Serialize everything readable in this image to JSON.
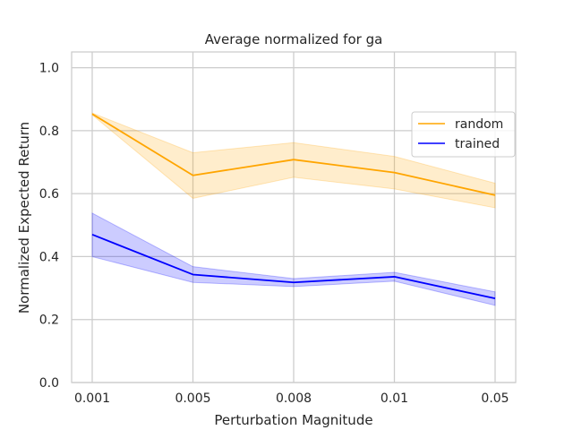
{
  "chart_data": {
    "type": "line",
    "title": "Average normalized for ga",
    "xlabel": "Perturbation Magnitude",
    "ylabel": "Normalized Expected Return",
    "categories": [
      "0.001",
      "0.005",
      "0.008",
      "0.01",
      "0.05"
    ],
    "ylim": [
      0.0,
      1.05
    ],
    "yticks": [
      "0.0",
      "0.2",
      "0.4",
      "0.6",
      "0.8",
      "1.0"
    ],
    "grid": true,
    "legend_position": "upper right",
    "series": [
      {
        "name": "random",
        "color": "#FFA500",
        "values": [
          0.853,
          0.658,
          0.708,
          0.667,
          0.595
        ],
        "lower": [
          0.85,
          0.585,
          0.652,
          0.615,
          0.555
        ],
        "upper": [
          0.856,
          0.73,
          0.762,
          0.718,
          0.633
        ]
      },
      {
        "name": "trained",
        "color": "#0000FF",
        "values": [
          0.47,
          0.343,
          0.318,
          0.336,
          0.267
        ],
        "lower": [
          0.4,
          0.318,
          0.305,
          0.322,
          0.245
        ],
        "upper": [
          0.538,
          0.368,
          0.33,
          0.35,
          0.288
        ]
      }
    ]
  }
}
